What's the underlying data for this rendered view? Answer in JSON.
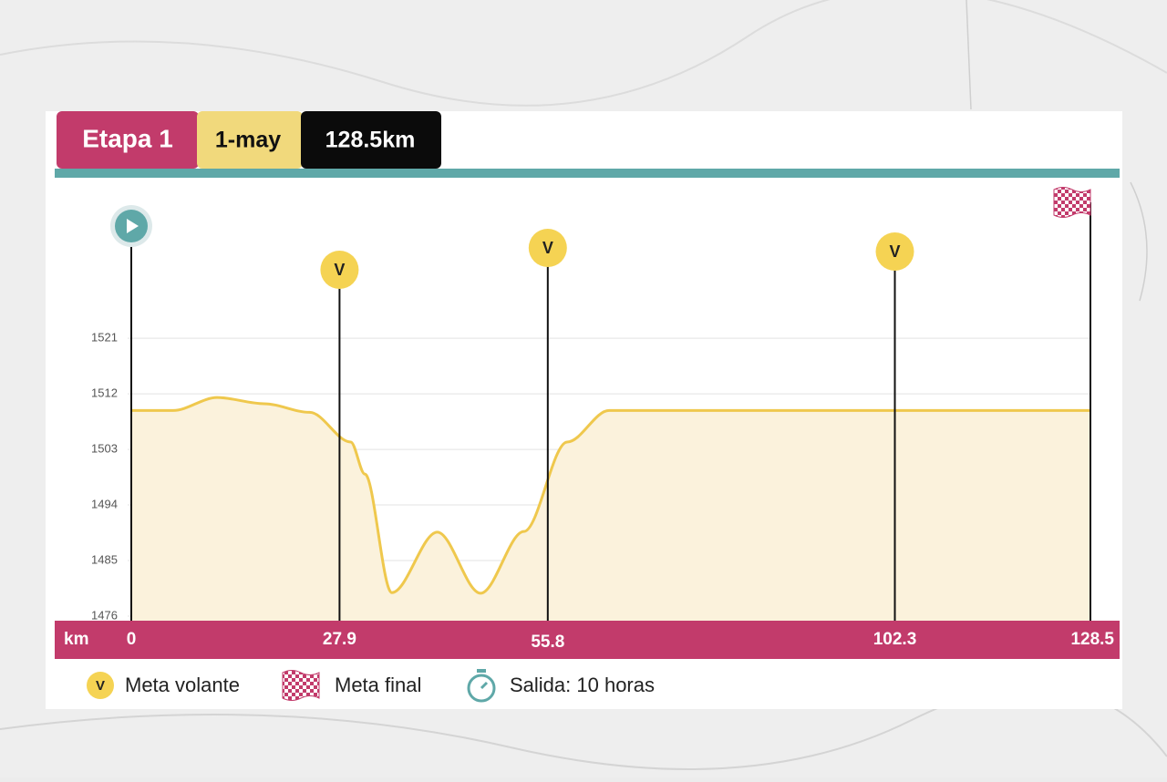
{
  "chart_data": {
    "type": "area",
    "title": "Etapa 1",
    "date": "1-may",
    "distance": "128.5km",
    "x_label": "km",
    "x": [
      0,
      5.6,
      11.5,
      17.8,
      23.9,
      29.4,
      31.3,
      34.9,
      41.0,
      46.8,
      52.6,
      58.4,
      64.0,
      128.5
    ],
    "values": [
      1509.3,
      1509.3,
      1511.4,
      1510.4,
      1509.0,
      1504.2,
      1499.0,
      1479.8,
      1489.6,
      1479.7,
      1489.7,
      1504.2,
      1509.3,
      1509.3
    ],
    "color": "#efc84d",
    "fill": "#fbf2dc",
    "xlim": [
      0,
      128.5
    ],
    "xticks": [
      0,
      27.9,
      55.8,
      102.3,
      128.5
    ],
    "ylim": [
      1476,
      1547
    ],
    "yticks": [
      1476,
      1485,
      1494,
      1503,
      1512,
      1521
    ],
    "grid": true,
    "markers": [
      "start",
      "sprint",
      "sprint",
      "sprint",
      "finish"
    ],
    "sprint_symbol": "V",
    "legend": [
      "Meta volante",
      "Meta final",
      "Salida: 10 horas"
    ]
  }
}
